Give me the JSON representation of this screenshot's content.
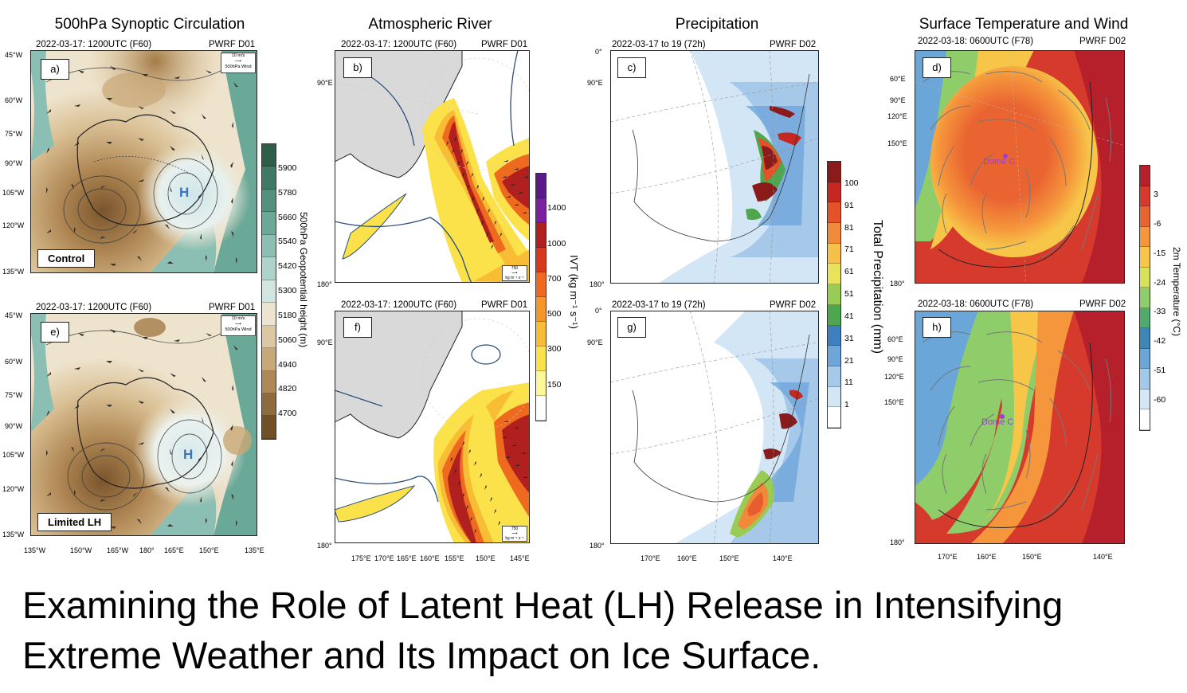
{
  "columns": [
    {
      "key": "synoptic",
      "title": "500hPa Synoptic Circulation"
    },
    {
      "key": "ar",
      "title": "Atmospheric River"
    },
    {
      "key": "precip",
      "title": "Precipitation"
    },
    {
      "key": "temp",
      "title": "Surface Temperature and Wind"
    }
  ],
  "panels": {
    "a": {
      "label": "a)",
      "date": "2022-03-17: 1200UTC (F60)",
      "domain": "PWRF D01",
      "experiment": "Control",
      "high": "H",
      "legend_speed": "10 m/s",
      "legend_var": "500hPa Wind"
    },
    "e": {
      "label": "e)",
      "date": "2022-03-17: 1200UTC (F60)",
      "domain": "PWRF D01",
      "experiment": "Limited LH",
      "high": "H",
      "legend_speed": "10 m/s",
      "legend_var": "500hPa Wind"
    },
    "b": {
      "label": "b)",
      "date": "2022-03-17: 1200UTC (F60)",
      "domain": "PWRF D01",
      "legend_speed": "750",
      "legend_unit": "kg m⁻¹ s⁻¹"
    },
    "f": {
      "label": "f)",
      "date": "2022-03-17: 1200UTC (F60)",
      "domain": "PWRF D01",
      "legend_speed": "750",
      "legend_unit": "kg m⁻¹ s⁻¹"
    },
    "c": {
      "label": "c)",
      "date": "2022-03-17 to 19 (72h)",
      "domain": "PWRF D02"
    },
    "g": {
      "label": "g)",
      "date": "2022-03-17 to 19 (72h)",
      "domain": "PWRF D02"
    },
    "d": {
      "label": "d)",
      "date": "2022-03-18: 0600UTC (F78)",
      "domain": "PWRF D02",
      "station": "Dome C"
    },
    "h": {
      "label": "h)",
      "date": "2022-03-18: 0600UTC (F78)",
      "domain": "PWRF D02",
      "station": "Dome C"
    }
  },
  "axes": {
    "synoptic_left": [
      "45°W",
      "60°W",
      "75°W",
      "90°W",
      "105°W",
      "120°W",
      "135°W"
    ],
    "synoptic_bottom": [
      "135°W",
      "150°W",
      "165°W",
      "180°",
      "165°E",
      "150°E",
      "135°E"
    ],
    "ar_left": [
      "90°E",
      "180°"
    ],
    "ar_bottom": [
      "175°E",
      "170°E",
      "165°E",
      "160°E",
      "155°E",
      "150°E",
      "145°E"
    ],
    "precip_left": [
      "0°",
      "90°E",
      "180°"
    ],
    "precip_bottom": [
      "170°E",
      "160°E",
      "150°E",
      "140°E"
    ],
    "temp_left": [
      "60°E",
      "90°E",
      "120°E",
      "150°E",
      "180°"
    ],
    "temp_bottom": [
      "170°E",
      "160°E",
      "150°E",
      "140°E"
    ]
  },
  "colorbars": {
    "gph": {
      "title": "500hPa Geopotential height (m)",
      "labels": [
        "5900",
        "5780",
        "5660",
        "5540",
        "5420",
        "5300",
        "5180",
        "5060",
        "4940",
        "4820",
        "4700"
      ],
      "colors": [
        "#2c5e4a",
        "#3e7a66",
        "#53917f",
        "#6aa898",
        "#8bbfb3",
        "#add3ca",
        "#d2e6e1",
        "#ede4d0",
        "#dcc7a2",
        "#c9a877",
        "#b08855",
        "#8f6a3c",
        "#734f26"
      ]
    },
    "ivt": {
      "title": "IVT (kg m⁻¹ s⁻¹)",
      "labels": [
        "1400",
        "1000",
        "700",
        "500",
        "300",
        "150"
      ],
      "colors": [
        "#5a1a8a",
        "#7c1fa0",
        "#b0201f",
        "#d8391c",
        "#ee6a1e",
        "#f5962a",
        "#f8bd34",
        "#fbe14a",
        "#fdf79a",
        "#ffffff"
      ]
    },
    "precip": {
      "title": "Total Precipitation (mm)",
      "labels": [
        "100",
        "91",
        "81",
        "71",
        "61",
        "51",
        "41",
        "31",
        "21",
        "11",
        "1"
      ],
      "colors": [
        "#8b1a1a",
        "#c42820",
        "#e4522a",
        "#f08a3a",
        "#f6c04a",
        "#e8e35a",
        "#99cc55",
        "#4ea64e",
        "#3f7fbf",
        "#6fa6d9",
        "#a6c9ea",
        "#d3e6f5",
        "#ffffff"
      ]
    },
    "temp": {
      "title": "2m Temperature (°C)",
      "labels": [
        "3",
        "-6",
        "-15",
        "-24",
        "-33",
        "-42",
        "-51",
        "-60"
      ],
      "colors": [
        "#b5202a",
        "#d63a2c",
        "#ea6432",
        "#f5953c",
        "#f7c548",
        "#d7e15a",
        "#8fcc6a",
        "#4faa70",
        "#3f86b8",
        "#6aa6d8",
        "#a4c8ea",
        "#d5e6f6",
        "#ffffff"
      ]
    }
  },
  "caption": {
    "line1": "Examining the Role of Latent Heat (LH) Release in Intensifying",
    "line2": "Extreme Weather and Its Impact on Ice Surface."
  },
  "colors": {
    "map_frame": "#222222",
    "land_gray": "#d9d9d9",
    "contour": "#2a4f7a",
    "high_label": "#3a73c2",
    "station": "#9a3fd1"
  }
}
